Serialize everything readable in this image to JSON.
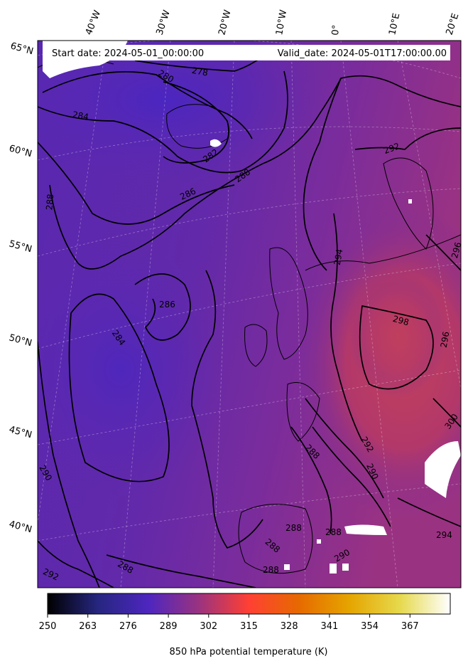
{
  "header": {
    "start_date": "Start date: 2024-05-01_00:00:00",
    "valid_date": "Valid_date: 2024-05-01T17:00:00.00"
  },
  "map": {
    "field": "850 hPa potential temperature",
    "lon_labels": [
      "40°W",
      "30°W",
      "20°W",
      "10°W",
      "0°",
      "10°E",
      "20°E"
    ],
    "lat_labels": [
      "65°N",
      "60°N",
      "55°N",
      "50°N",
      "45°N",
      "40°N"
    ],
    "contour_labels": [
      {
        "text": "278"
      },
      {
        "text": "280"
      },
      {
        "text": "284"
      },
      {
        "text": "282"
      },
      {
        "text": "286"
      },
      {
        "text": "288"
      },
      {
        "text": "288"
      },
      {
        "text": "286"
      },
      {
        "text": "284"
      },
      {
        "text": "290"
      },
      {
        "text": "292"
      },
      {
        "text": "288"
      },
      {
        "text": "292"
      },
      {
        "text": "294"
      },
      {
        "text": "296"
      },
      {
        "text": "298"
      },
      {
        "text": "296"
      },
      {
        "text": "300"
      },
      {
        "text": "288"
      },
      {
        "text": "292"
      },
      {
        "text": "290"
      },
      {
        "text": "288"
      },
      {
        "text": "288"
      },
      {
        "text": "288"
      },
      {
        "text": "290"
      },
      {
        "text": "294"
      },
      {
        "text": "288"
      }
    ],
    "colors": {
      "cold": "#4a26b8",
      "mid": "#6a2aa6",
      "warm": "#b2386a",
      "warmest": "#c2405c",
      "missing": "#ffffff"
    }
  },
  "colorbar": {
    "title": "850 hPa potential temperature (K)",
    "min": 250,
    "max": 380,
    "ticks": [
      "250",
      "263",
      "276",
      "289",
      "302",
      "315",
      "328",
      "341",
      "354",
      "367"
    ],
    "colormap": "CMRmap"
  }
}
